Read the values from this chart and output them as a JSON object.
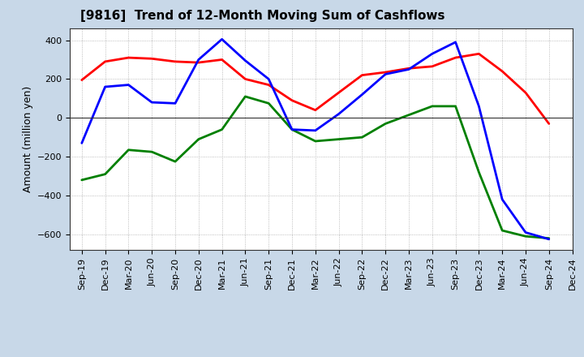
{
  "title": "[9816]  Trend of 12-Month Moving Sum of Cashflows",
  "ylabel": "Amount (million yen)",
  "x_labels": [
    "Sep-19",
    "Dec-19",
    "Mar-20",
    "Jun-20",
    "Sep-20",
    "Dec-20",
    "Mar-21",
    "Jun-21",
    "Sep-21",
    "Dec-21",
    "Mar-22",
    "Jun-22",
    "Sep-22",
    "Dec-22",
    "Mar-23",
    "Jun-23",
    "Sep-23",
    "Dec-23",
    "Mar-24",
    "Jun-24",
    "Sep-24",
    "Dec-24"
  ],
  "operating": [
    195,
    290,
    310,
    305,
    290,
    285,
    300,
    200,
    170,
    90,
    40,
    130,
    220,
    235,
    255,
    265,
    310,
    330,
    240,
    130,
    -30,
    null
  ],
  "investing": [
    -320,
    -290,
    -165,
    -175,
    -225,
    -110,
    -60,
    110,
    75,
    -60,
    -120,
    -110,
    -100,
    -30,
    15,
    60,
    60,
    -280,
    -580,
    -610,
    -620,
    null
  ],
  "free": [
    -130,
    160,
    170,
    80,
    75,
    300,
    405,
    295,
    200,
    -60,
    -65,
    20,
    120,
    225,
    250,
    330,
    390,
    60,
    -420,
    -590,
    -625,
    null
  ],
  "ylim": [
    -680,
    460
  ],
  "yticks": [
    -600,
    -400,
    -200,
    0,
    200,
    400
  ],
  "operating_color": "#ff0000",
  "investing_color": "#008000",
  "free_color": "#0000ff",
  "outer_bg": "#c8d8e8",
  "plot_bg": "#ffffff",
  "linewidth": 2.0,
  "title_fontsize": 11,
  "axis_fontsize": 8,
  "ylabel_fontsize": 9
}
